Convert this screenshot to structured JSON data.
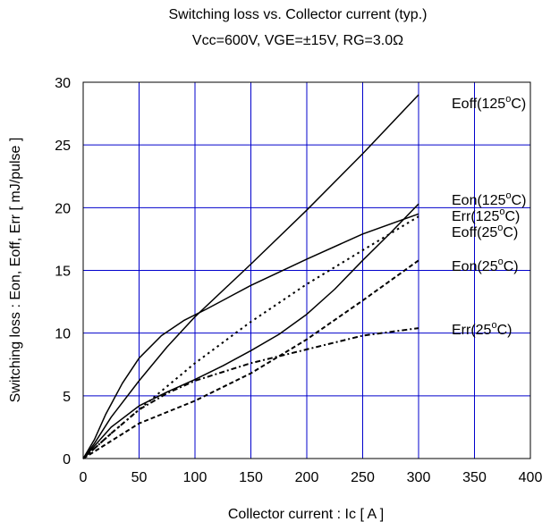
{
  "chart_data": {
    "type": "line",
    "title": "Switching loss vs. Collector current (typ.)",
    "subtitle": "Vcc=600V, VGE=±15V, RG=3.0Ω",
    "xlabel": "Collector current : Ic [ A ]",
    "ylabel": "Switching loss : Eon, Eoff, Err [ mJ/pulse ]",
    "xlim": [
      0,
      400
    ],
    "ylim": [
      0,
      30
    ],
    "xticks": [
      0,
      50,
      100,
      150,
      200,
      250,
      300,
      350,
      400
    ],
    "yticks": [
      0,
      5,
      10,
      15,
      20,
      25,
      30
    ],
    "grid": true,
    "grid_color": "#0000cc",
    "line_color": "#000000",
    "series": [
      {
        "id": "eoff-125",
        "label_parts": [
          "Eoff(125",
          "o",
          "C)"
        ],
        "style": "solid",
        "x": [
          0,
          10,
          25,
          50,
          75,
          100,
          150,
          200,
          250,
          300
        ],
        "y": [
          0,
          1.2,
          3.3,
          6.2,
          8.9,
          11.3,
          15.5,
          19.8,
          24.3,
          29.0
        ]
      },
      {
        "id": "eon-125",
        "label_parts": [
          "Eon(125",
          "o",
          "C)"
        ],
        "style": "solid",
        "x": [
          0,
          10,
          25,
          50,
          75,
          100,
          125,
          150,
          175,
          200,
          225,
          250,
          275,
          300
        ],
        "y": [
          0,
          1.0,
          2.5,
          4.2,
          5.3,
          6.3,
          7.4,
          8.6,
          9.9,
          11.5,
          13.5,
          15.8,
          18.0,
          20.3
        ]
      },
      {
        "id": "err-125",
        "label_parts": [
          "Err(125",
          "o",
          "C)"
        ],
        "style": "solid",
        "x": [
          0,
          10,
          20,
          35,
          50,
          70,
          90,
          110,
          150,
          200,
          250,
          300
        ],
        "y": [
          0,
          1.5,
          3.5,
          6.0,
          8.0,
          9.8,
          11.0,
          11.9,
          13.8,
          15.9,
          17.9,
          19.5
        ]
      },
      {
        "id": "eoff-25",
        "label_parts": [
          "Eoff(25",
          "o",
          "C)"
        ],
        "style": "dotted",
        "x": [
          0,
          25,
          50,
          100,
          150,
          200,
          250,
          300
        ],
        "y": [
          0,
          2.0,
          3.9,
          7.6,
          10.9,
          13.9,
          16.6,
          19.3
        ]
      },
      {
        "id": "eon-25",
        "label_parts": [
          "Eon(25",
          "o",
          "C)"
        ],
        "style": "dashed",
        "x": [
          0,
          25,
          50,
          100,
          150,
          200,
          250,
          300
        ],
        "y": [
          0,
          1.4,
          2.8,
          4.6,
          6.8,
          9.5,
          12.6,
          15.8
        ]
      },
      {
        "id": "err-25",
        "label_parts": [
          "Err(25",
          "o",
          "C)"
        ],
        "style": "dashdot",
        "x": [
          0,
          25,
          50,
          75,
          100,
          150,
          200,
          250,
          300
        ],
        "y": [
          0,
          2.0,
          3.9,
          5.2,
          6.2,
          7.6,
          8.7,
          9.8,
          10.4
        ]
      }
    ]
  }
}
